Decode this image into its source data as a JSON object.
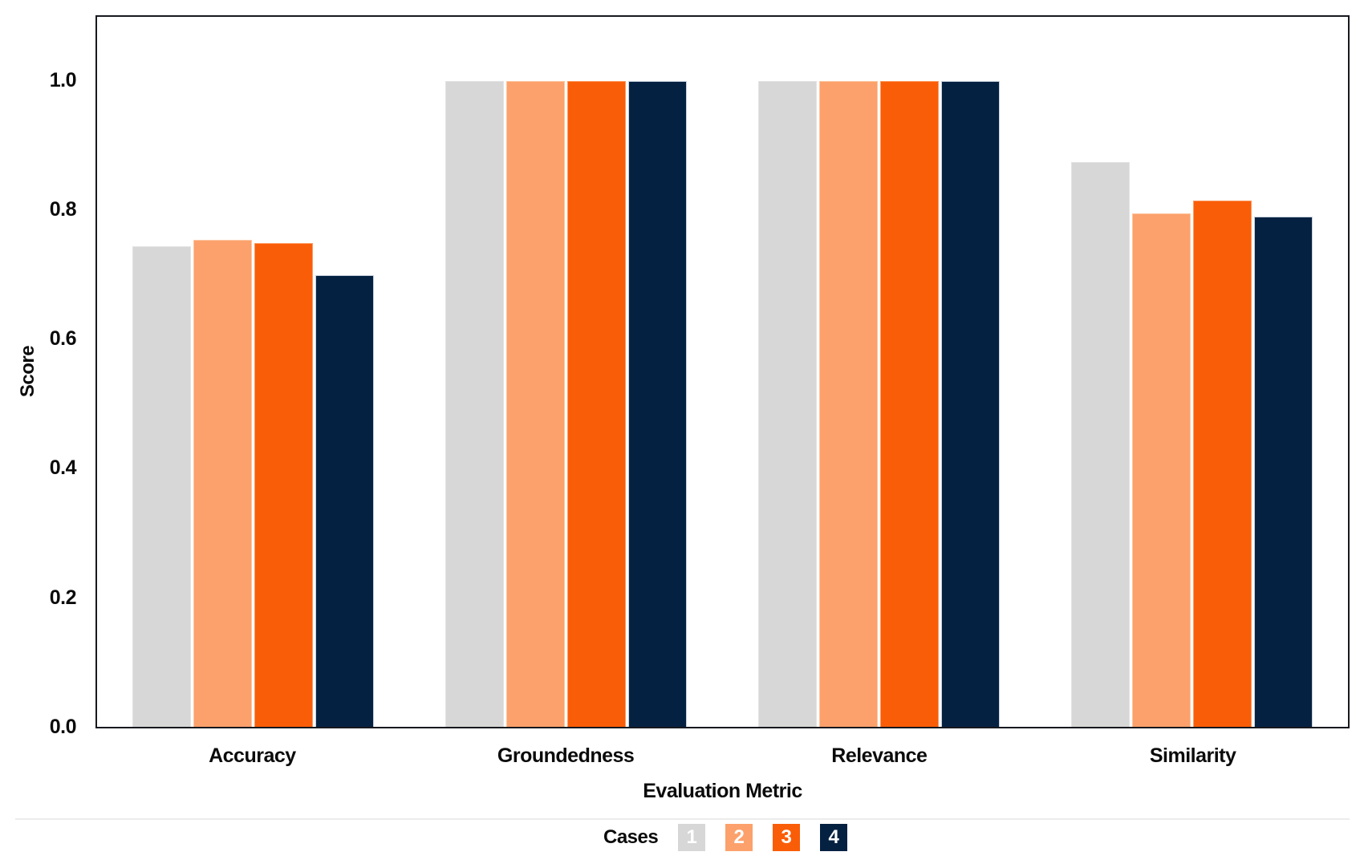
{
  "chart_data": {
    "type": "bar",
    "title": "",
    "categories": [
      "Accuracy",
      "Groundedness",
      "Relevance",
      "Similarity"
    ],
    "series": [
      {
        "name": "1",
        "color": "#d7d7d7",
        "edge_color": "#e3e3e3",
        "values": [
          0.745,
          1.0,
          1.0,
          0.875
        ]
      },
      {
        "name": "2",
        "color": "#fca16c",
        "edge_color": "#fdc6a1",
        "values": [
          0.755,
          1.0,
          1.0,
          0.795
        ]
      },
      {
        "name": "3",
        "color": "#fa5d07",
        "edge_color": "#fc9a62",
        "values": [
          0.75,
          1.0,
          1.0,
          0.815
        ]
      },
      {
        "name": "4",
        "color": "#052142",
        "edge_color": "#c9d2dd",
        "values": [
          0.7,
          1.0,
          1.0,
          0.79
        ]
      }
    ],
    "xlabel": "Evaluation Metric",
    "ylabel": "Score",
    "ylim": [
      0,
      1.1
    ],
    "yticks": [
      1.0,
      0.8,
      0.6,
      0.4,
      0.2,
      0.0
    ],
    "ytick_labels": [
      "1.0",
      "0.8",
      "0.6",
      "0.4",
      "0.2",
      "0.0"
    ],
    "grid": false,
    "legend": {
      "title": "Cases",
      "position": "bottom-center",
      "entries": [
        "1",
        "2",
        "3",
        "4"
      ]
    }
  },
  "colors": {
    "text": "#0b0b0b",
    "spine": "#17191f",
    "divider": "#ececec",
    "legend_number": "#ffffff",
    "background": "#ffffff"
  }
}
